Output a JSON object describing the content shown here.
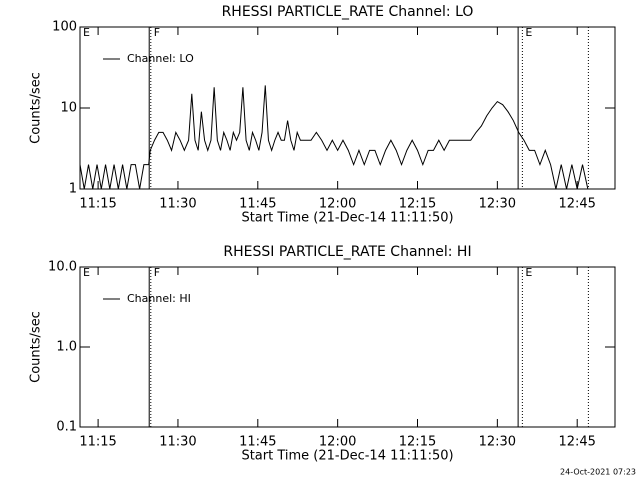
{
  "chart_data": [
    {
      "type": "line",
      "title": "RHESSI PARTICLE_RATE Channel: LO",
      "x_label": "Start Time (21-Dec-14 11:11:50)",
      "y_label": "Counts/sec",
      "x": [
        671.6,
        672.4,
        673.2,
        674,
        674.8,
        675.6,
        676.4,
        677.2,
        678,
        678.8,
        679.6,
        680.4,
        681.2,
        682,
        682.8,
        683.6,
        684.5,
        684.8,
        685.6,
        686.4,
        687.2,
        688,
        688.8,
        689.6,
        690.4,
        691.2,
        692,
        692.6,
        693.2,
        693.8,
        694.4,
        695,
        695.6,
        696.2,
        696.8,
        697.4,
        698,
        698.6,
        699.2,
        699.8,
        700.4,
        701,
        701.6,
        702.2,
        702.8,
        703.4,
        704,
        704.6,
        705.2,
        705.8,
        706.4,
        707,
        707.6,
        708.2,
        708.8,
        709.4,
        710,
        710.6,
        711.2,
        711.8,
        712.4,
        713,
        714,
        715,
        716,
        717,
        718,
        719,
        720,
        721,
        722,
        723,
        724,
        725,
        726,
        727,
        728,
        729,
        730,
        731,
        732,
        733,
        734,
        735,
        736,
        737,
        738,
        739,
        740,
        741,
        742,
        743,
        744,
        745,
        746,
        747,
        748,
        749,
        750,
        751,
        752,
        753,
        754,
        755,
        756,
        757,
        758,
        759,
        760,
        761,
        762,
        763,
        764,
        765,
        766,
        767
      ],
      "series": [
        {
          "name": "Channel: LO",
          "color": "#000000",
          "values": [
            2,
            1,
            2,
            1,
            2,
            1,
            2,
            1,
            2,
            1,
            2,
            1,
            2,
            2,
            1,
            2,
            2,
            3,
            4,
            5,
            5,
            4,
            3,
            5,
            4,
            3,
            4,
            15,
            4,
            3,
            9,
            4,
            3,
            4,
            18,
            4,
            3,
            5,
            4,
            3,
            5,
            4,
            5,
            18,
            4,
            3,
            5,
            4,
            3,
            5,
            19,
            4,
            3,
            4,
            5,
            4,
            4,
            7,
            4,
            3,
            5,
            4,
            4,
            4,
            5,
            4,
            3,
            4,
            3,
            4,
            3,
            2,
            3,
            2,
            3,
            3,
            2,
            3,
            4,
            3,
            2,
            3,
            4,
            3,
            2,
            3,
            3,
            4,
            3,
            4,
            4,
            4,
            4,
            4,
            5,
            6,
            8,
            10,
            12,
            11,
            9,
            7,
            5,
            4,
            3,
            3,
            2,
            3,
            2,
            1,
            2,
            1,
            2,
            1,
            2,
            1
          ]
        }
      ],
      "xlim": [
        671.6,
        772.1
      ],
      "xticks": [
        {
          "value": 675,
          "label": "11:15"
        },
        {
          "value": 690,
          "label": "11:30"
        },
        {
          "value": 705,
          "label": "11:45"
        },
        {
          "value": 720,
          "label": "12:00"
        },
        {
          "value": 735,
          "label": "12:15"
        },
        {
          "value": 750,
          "label": "12:30"
        },
        {
          "value": 765,
          "label": "12:45"
        }
      ],
      "ylim": [
        1,
        100
      ],
      "yticks": [
        1,
        10,
        100
      ],
      "log_y": true,
      "legend": "upper left",
      "markers": [
        {
          "x": 671.6,
          "label": "E"
        },
        {
          "x": 684.6,
          "style": "solid"
        },
        {
          "x": 684.9,
          "label": "F",
          "style": "dotted"
        },
        {
          "x": 753.9,
          "style": "solid"
        },
        {
          "x": 754.7,
          "label": "E",
          "style": "dotted"
        },
        {
          "x": 767.1,
          "style": "dotted"
        }
      ]
    },
    {
      "type": "line",
      "title": "RHESSI PARTICLE_RATE Channel: HI",
      "x_label": "Start Time (21-Dec-14 11:11:50)",
      "y_label": "Counts/sec",
      "x": [],
      "series": [
        {
          "name": "Channel: HI",
          "color": "#000000",
          "values": []
        }
      ],
      "xlim": [
        671.6,
        772.1
      ],
      "xticks": [
        {
          "value": 675,
          "label": "11:15"
        },
        {
          "value": 690,
          "label": "11:30"
        },
        {
          "value": 705,
          "label": "11:45"
        },
        {
          "value": 720,
          "label": "12:00"
        },
        {
          "value": 735,
          "label": "12:15"
        },
        {
          "value": 750,
          "label": "12:30"
        },
        {
          "value": 765,
          "label": "12:45"
        }
      ],
      "ylim": [
        0.1,
        10
      ],
      "yticks": [
        0.1,
        {
          "value": 1,
          "label": "1.0"
        },
        {
          "value": 10,
          "label": "10.0"
        }
      ],
      "log_y": true,
      "legend": "upper left",
      "markers": [
        {
          "x": 671.6,
          "label": "E"
        },
        {
          "x": 684.6,
          "style": "solid"
        },
        {
          "x": 684.9,
          "label": "F",
          "style": "dotted"
        },
        {
          "x": 753.9,
          "style": "solid"
        },
        {
          "x": 754.7,
          "label": "E",
          "style": "dotted"
        },
        {
          "x": 767.1,
          "style": "dotted"
        }
      ]
    }
  ],
  "footer": "24-Oct-2021 07:23"
}
